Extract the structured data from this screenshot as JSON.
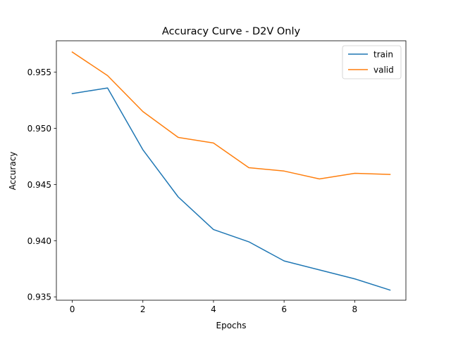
{
  "chart_data": {
    "type": "line",
    "title": "Accuracy Curve - D2V Only",
    "xlabel": "Epochs",
    "ylabel": "Accuracy",
    "x": [
      0,
      1,
      2,
      3,
      4,
      5,
      6,
      7,
      8,
      9
    ],
    "xlim": [
      -0.45,
      9.45
    ],
    "ylim": [
      0.9347,
      0.9578
    ],
    "xticks": [
      0,
      2,
      4,
      6,
      8
    ],
    "xtick_labels": [
      "0",
      "2",
      "4",
      "6",
      "8"
    ],
    "yticks": [
      0.935,
      0.94,
      0.945,
      0.95,
      0.955
    ],
    "ytick_labels": [
      "0.935",
      "0.940",
      "0.945",
      "0.950",
      "0.955"
    ],
    "grid": false,
    "legend_position": "top-right",
    "series": [
      {
        "name": "train",
        "color": "#1f77b4",
        "values": [
          0.9531,
          0.9536,
          0.9481,
          0.9439,
          0.941,
          0.9399,
          0.9382,
          0.9374,
          0.9366,
          0.9356
        ]
      },
      {
        "name": "valid",
        "color": "#ff7f0e",
        "values": [
          0.9568,
          0.9547,
          0.9515,
          0.9492,
          0.9487,
          0.9465,
          0.9462,
          0.9455,
          0.946,
          0.9459
        ]
      }
    ]
  }
}
